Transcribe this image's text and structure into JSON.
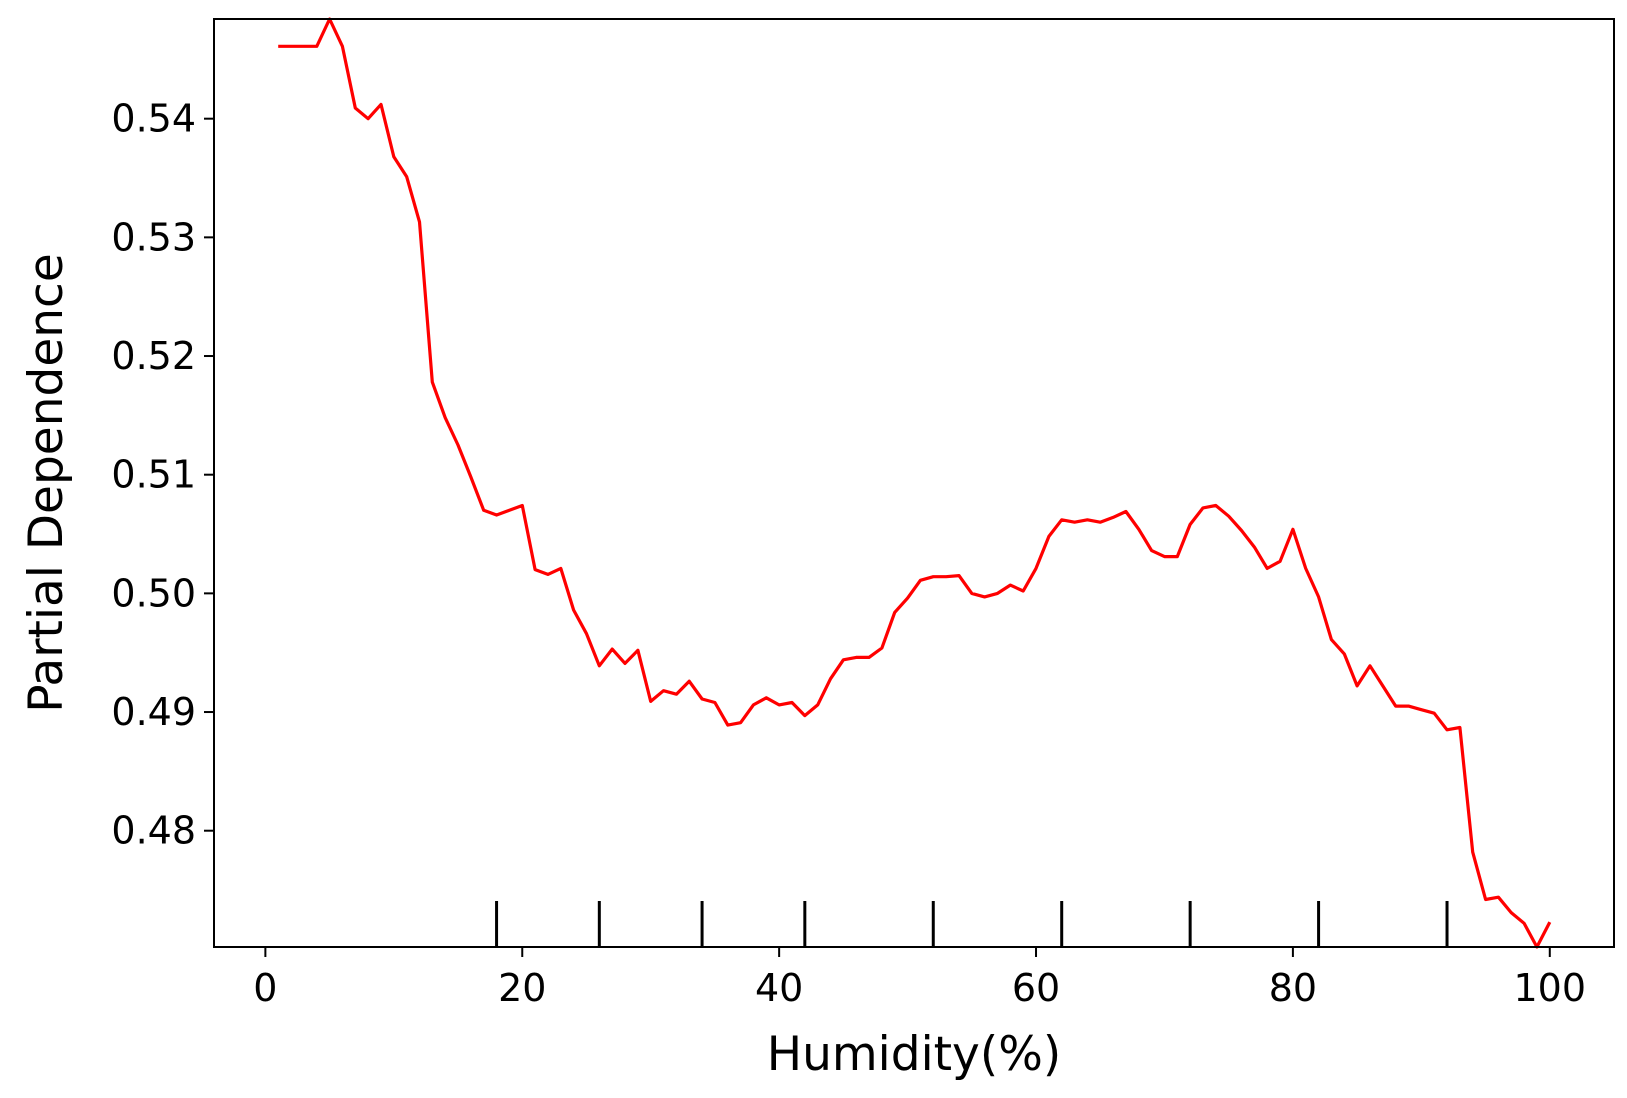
{
  "colors": {
    "line": "#ff0000",
    "axis": "#000000",
    "background": "#ffffff"
  },
  "chart_data": {
    "type": "line",
    "title": "",
    "xlabel": "Humidity(%)",
    "ylabel": "Partial Dependence",
    "xlim": [
      -4,
      105
    ],
    "ylim": [
      0.4702,
      0.5484
    ],
    "grid": false,
    "xticks": [
      0,
      20,
      40,
      60,
      80,
      100
    ],
    "xtick_labels": [
      "0",
      "20",
      "40",
      "60",
      "80",
      "100"
    ],
    "yticks": [
      0.48,
      0.49,
      0.5,
      0.51,
      0.52,
      0.53,
      0.54
    ],
    "ytick_labels": [
      "0.48",
      "0.49",
      "0.50",
      "0.51",
      "0.52",
      "0.53",
      "0.54"
    ],
    "rug_x": [
      18,
      26,
      34,
      42,
      52,
      62,
      72,
      82,
      92
    ],
    "series": [
      {
        "x": [
          1,
          2,
          3,
          4,
          5,
          6,
          7,
          8,
          9,
          10,
          11,
          12,
          13,
          14,
          15,
          16,
          17,
          18,
          19,
          20,
          21,
          22,
          23,
          24,
          25,
          26,
          27,
          28,
          29,
          30,
          31,
          32,
          33,
          34,
          35,
          36,
          37,
          38,
          39,
          40,
          41,
          42,
          43,
          44,
          45,
          46,
          47,
          48,
          49,
          50,
          51,
          52,
          53,
          54,
          55,
          56,
          57,
          58,
          59,
          60,
          61,
          62,
          63,
          64,
          65,
          66,
          67,
          68,
          69,
          70,
          71,
          72,
          73,
          74,
          75,
          76,
          77,
          78,
          79,
          80,
          81,
          82,
          83,
          84,
          85,
          86,
          87,
          88,
          89,
          90,
          91,
          92,
          93,
          94,
          95,
          96,
          97,
          98,
          99,
          100
        ],
        "y": [
          0.5461,
          0.5461,
          0.5461,
          0.5461,
          0.5484,
          0.5461,
          0.5409,
          0.54,
          0.5412,
          0.5368,
          0.5351,
          0.5313,
          0.5178,
          0.5148,
          0.5125,
          0.5098,
          0.507,
          0.5066,
          0.507,
          0.5074,
          0.502,
          0.5016,
          0.5021,
          0.4986,
          0.4966,
          0.4939,
          0.4953,
          0.4941,
          0.4952,
          0.4909,
          0.4918,
          0.4915,
          0.4926,
          0.4911,
          0.4908,
          0.4889,
          0.4891,
          0.4906,
          0.4912,
          0.4906,
          0.4908,
          0.4897,
          0.4906,
          0.4928,
          0.4944,
          0.4946,
          0.4946,
          0.4954,
          0.4984,
          0.4996,
          0.5011,
          0.5014,
          0.5014,
          0.5015,
          0.5,
          0.4997,
          0.5,
          0.5007,
          0.5002,
          0.5021,
          0.5048,
          0.5062,
          0.506,
          0.5062,
          0.506,
          0.5064,
          0.5069,
          0.5054,
          0.5036,
          0.5031,
          0.5031,
          0.5058,
          0.5072,
          0.5074,
          0.5065,
          0.5053,
          0.5039,
          0.5021,
          0.5027,
          0.5054,
          0.5021,
          0.4997,
          0.4961,
          0.4949,
          0.4922,
          0.4939,
          0.4922,
          0.4905,
          0.4905,
          0.4902,
          0.4899,
          0.4885,
          0.4887,
          0.4782,
          0.4742,
          0.4744,
          0.4731,
          0.4722,
          0.4702,
          0.4723
        ]
      }
    ]
  }
}
